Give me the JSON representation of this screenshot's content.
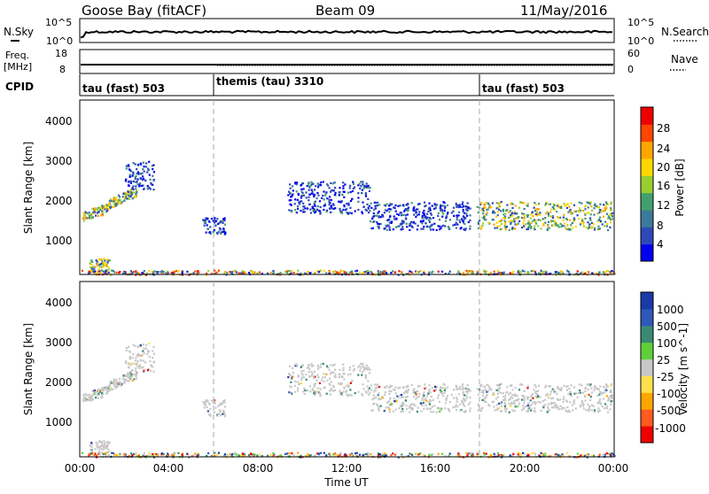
{
  "header": {
    "site": "Goose Bay (fitACF)",
    "beam": "Beam 09",
    "date": "11/May/2016"
  },
  "strip_nsky": {
    "left_label": "N.Sky",
    "right_label": "N.Search",
    "left_ticks": [
      "10^5",
      "10^0"
    ],
    "right_ticks": [
      "10^5",
      "10^0"
    ]
  },
  "strip_freq": {
    "left_label_line1": "Freq.",
    "left_label_line2": "[MHz]",
    "right_label": "Nave",
    "left_ticks": [
      "18",
      "8"
    ],
    "right_ticks": [
      "60",
      "0"
    ]
  },
  "cpid": {
    "label": "CPID",
    "segments": [
      {
        "label": "tau (fast) 503",
        "start_hour": 0
      },
      {
        "label": "themis (tau) 3310",
        "start_hour": 6
      },
      {
        "label": "tau (fast) 503",
        "start_hour": 18
      }
    ]
  },
  "chart_data": [
    {
      "type": "heatmap",
      "title": "Power",
      "xlabel": "Time UT",
      "ylabel": "Slant Range [km]",
      "xlim": [
        0,
        24
      ],
      "ylim": [
        180,
        4500
      ],
      "x_ticks": [
        "00:00",
        "04:00",
        "08:00",
        "12:00",
        "16:00",
        "20:00",
        "00:00"
      ],
      "y_ticks": [
        1000,
        2000,
        3000,
        4000
      ],
      "colorbar": {
        "label": "Power [dB]",
        "ticks": [
          "4",
          "8",
          "12",
          "16",
          "20",
          "24",
          "28"
        ],
        "colors": [
          "#0000ee",
          "#2d49b8",
          "#3a7a9a",
          "#43a06e",
          "#9acd32",
          "#ffd700",
          "#ffa500",
          "#ff4500",
          "#ee0000"
        ]
      },
      "echo_regions": [
        {
          "t_start": 0.1,
          "t_end": 1.2,
          "range_start": 1500,
          "range_end": 1800,
          "level": "strong"
        },
        {
          "t_start": 1.2,
          "t_end": 2.6,
          "range_start": 1800,
          "range_end": 2300,
          "level": "strong"
        },
        {
          "t_start": 2.0,
          "t_end": 3.3,
          "range_start": 2300,
          "range_end": 3000,
          "level": "weak"
        },
        {
          "t_start": 0.4,
          "t_end": 1.3,
          "range_start": 250,
          "range_end": 600,
          "level": "strong"
        },
        {
          "t_start": 5.5,
          "t_end": 6.5,
          "range_start": 1200,
          "range_end": 1600,
          "level": "weak"
        },
        {
          "t_start": 9.3,
          "t_end": 13.0,
          "range_start": 1700,
          "range_end": 2500,
          "level": "weak"
        },
        {
          "t_start": 13.0,
          "t_end": 17.5,
          "range_start": 1300,
          "range_end": 2000,
          "level": "weak"
        },
        {
          "t_start": 17.8,
          "t_end": 23.9,
          "range_start": 1300,
          "range_end": 2000,
          "level": "strong"
        },
        {
          "t_start": 0,
          "t_end": 24,
          "range_start": 190,
          "range_end": 300,
          "level": "ground"
        }
      ]
    },
    {
      "type": "heatmap",
      "title": "Velocity",
      "xlabel": "Time UT",
      "ylabel": "Slant Range [km]",
      "xlim": [
        0,
        24
      ],
      "ylim": [
        180,
        4500
      ],
      "x_ticks": [
        "00:00",
        "04:00",
        "08:00",
        "12:00",
        "16:00",
        "20:00",
        "00:00"
      ],
      "y_ticks": [
        1000,
        2000,
        3000,
        4000
      ],
      "colorbar": {
        "label": "Velocity [m s^-1]",
        "ticks": [
          "1000",
          "500",
          "100",
          "25",
          "-25",
          "-100",
          "-500",
          "-1000"
        ],
        "colors": [
          "#1a3aa8",
          "#2f58b8",
          "#3a8a72",
          "#5fd03a",
          "#c8c8c8",
          "#ffe14d",
          "#ffa500",
          "#ff5a1f",
          "#ee0000"
        ]
      }
    }
  ]
}
